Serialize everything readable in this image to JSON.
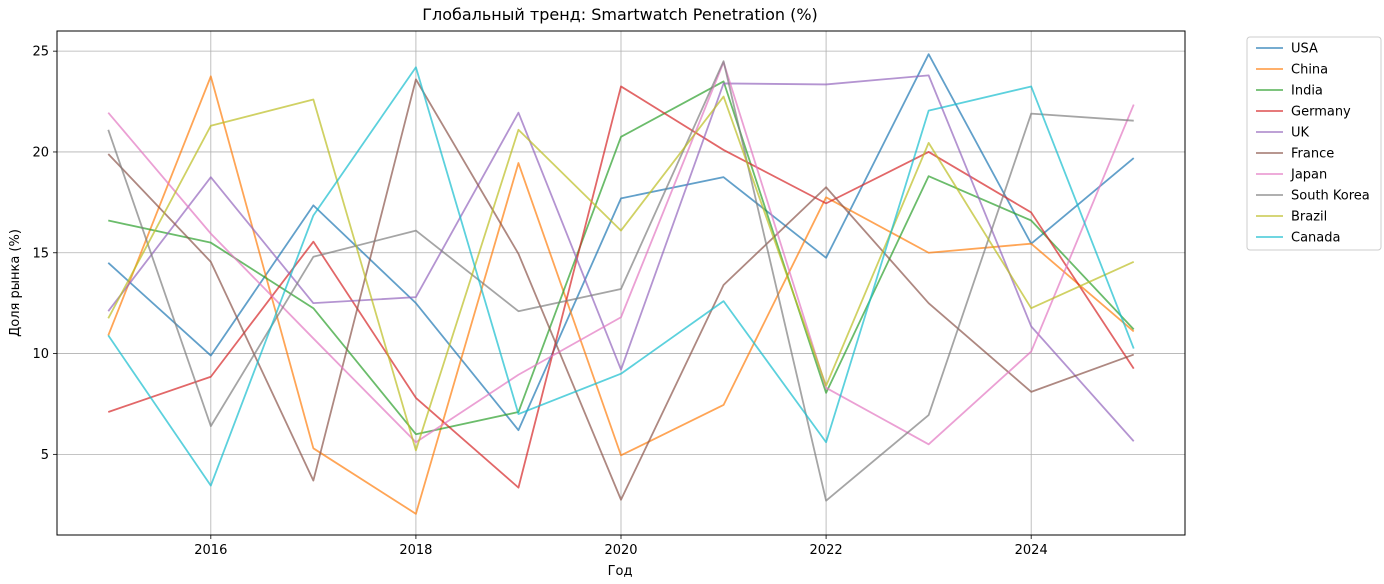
{
  "chart_data": {
    "type": "line",
    "title": "Глобальный тренд: Smartwatch Penetration (%)",
    "xlabel": "Год",
    "ylabel": "Доля рынка (%)",
    "xlim": [
      2014.5,
      2025.5
    ],
    "ylim": [
      1.0,
      26.0
    ],
    "x_ticks": [
      2016,
      2018,
      2020,
      2022,
      2024
    ],
    "y_ticks": [
      5,
      10,
      15,
      20,
      25
    ],
    "grid": true,
    "legend_position": "outside-top-right",
    "x": [
      2015,
      2016,
      2017,
      2018,
      2019,
      2020,
      2021,
      2022,
      2023,
      2024,
      2025
    ],
    "series": [
      {
        "name": "USA",
        "color": "#1f77b4",
        "values": [
          14.5,
          9.9,
          17.35,
          12.5,
          6.2,
          17.7,
          18.75,
          14.75,
          24.85,
          15.45,
          19.7
        ]
      },
      {
        "name": "China",
        "color": "#ff7f0e",
        "values": [
          10.9,
          23.75,
          5.3,
          2.05,
          19.45,
          4.95,
          7.45,
          17.75,
          15.0,
          15.45,
          11.1
        ]
      },
      {
        "name": "India",
        "color": "#2ca02c",
        "values": [
          16.6,
          15.5,
          12.25,
          6.0,
          7.1,
          20.75,
          23.5,
          8.05,
          18.8,
          16.6,
          11.2
        ]
      },
      {
        "name": "Germany",
        "color": "#d62728",
        "values": [
          7.1,
          8.85,
          15.55,
          7.8,
          3.35,
          23.25,
          20.1,
          17.45,
          20.0,
          17.0,
          9.25
        ]
      },
      {
        "name": "UK",
        "color": "#9467bd",
        "values": [
          12.1,
          18.75,
          12.5,
          12.8,
          21.95,
          9.2,
          23.4,
          23.35,
          23.8,
          11.35,
          5.65
        ]
      },
      {
        "name": "France",
        "color": "#8c564b",
        "values": [
          19.9,
          14.55,
          3.7,
          23.6,
          14.95,
          2.75,
          13.4,
          18.25,
          12.5,
          8.1,
          9.95
        ]
      },
      {
        "name": "Japan",
        "color": "#e377c2",
        "values": [
          21.95,
          15.95,
          10.75,
          5.6,
          8.95,
          11.8,
          24.45,
          8.3,
          5.5,
          10.1,
          22.35
        ]
      },
      {
        "name": "South Korea",
        "color": "#7f7f7f",
        "values": [
          21.1,
          6.4,
          14.8,
          16.1,
          12.1,
          13.2,
          24.5,
          2.7,
          6.95,
          21.9,
          21.55
        ]
      },
      {
        "name": "Brazil",
        "color": "#bcbd22",
        "values": [
          11.75,
          21.3,
          22.6,
          5.2,
          21.1,
          16.1,
          22.75,
          8.4,
          20.45,
          12.25,
          14.55
        ]
      },
      {
        "name": "Canada",
        "color": "#17becf",
        "values": [
          10.9,
          3.45,
          16.85,
          24.2,
          7.0,
          9.0,
          12.6,
          5.6,
          22.05,
          23.25,
          10.25
        ]
      }
    ]
  }
}
